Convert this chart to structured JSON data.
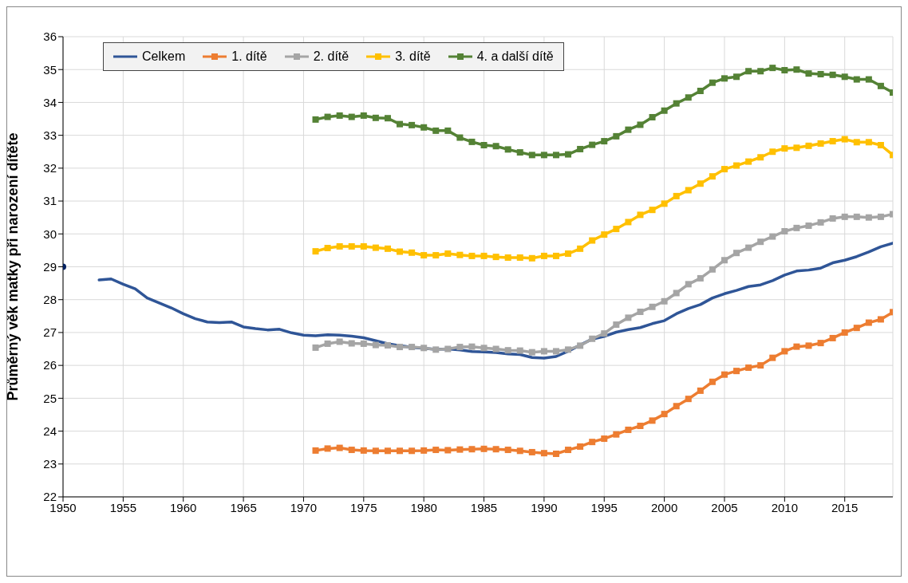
{
  "chart_data": {
    "type": "line",
    "ylabel": "Průměrný věk matky při narození dítěte",
    "xlim": [
      1950,
      2019
    ],
    "xticks": [
      1950,
      1955,
      1960,
      1965,
      1970,
      1975,
      1980,
      1985,
      1990,
      1995,
      2000,
      2005,
      2010,
      2015
    ],
    "ylim": [
      22,
      36
    ],
    "yticks": [
      22,
      23,
      24,
      25,
      26,
      27,
      28,
      29,
      30,
      31,
      32,
      33,
      34,
      35,
      36
    ],
    "grid": true,
    "legend": "top left",
    "series": [
      {
        "type": "scatter",
        "color": "#002060",
        "marker": "circle",
        "x": [
          1950
        ],
        "values": [
          29.0
        ]
      },
      {
        "name": "Celkem",
        "color": "#2f5597",
        "marker": "none",
        "x": [
          1953,
          1954,
          1955,
          1956,
          1957,
          1958,
          1959,
          1960,
          1961,
          1962,
          1963,
          1964,
          1965,
          1966,
          1967,
          1968,
          1969,
          1970,
          1971,
          1972,
          1973,
          1974,
          1975,
          1976,
          1977,
          1978,
          1979,
          1980,
          1981,
          1982,
          1983,
          1984,
          1985,
          1986,
          1987,
          1988,
          1989,
          1990,
          1991,
          1992,
          1993,
          1994,
          1995,
          1996,
          1997,
          1998,
          1999,
          2000,
          2001,
          2002,
          2003,
          2004,
          2005,
          2006,
          2007,
          2008,
          2009,
          2010,
          2011,
          2012,
          2013,
          2014,
          2015,
          2016,
          2017,
          2018,
          2019
        ],
        "values": [
          28.6,
          28.63,
          28.47,
          28.33,
          28.05,
          27.9,
          27.75,
          27.57,
          27.42,
          27.32,
          27.3,
          27.32,
          27.17,
          27.12,
          27.08,
          27.1,
          26.99,
          26.92,
          26.9,
          26.93,
          26.92,
          26.89,
          26.84,
          26.75,
          26.66,
          26.6,
          26.55,
          26.52,
          26.49,
          26.5,
          26.47,
          26.42,
          26.41,
          26.39,
          26.35,
          26.33,
          26.24,
          26.22,
          26.27,
          26.43,
          26.62,
          26.8,
          26.88,
          27.01,
          27.09,
          27.15,
          27.27,
          27.36,
          27.57,
          27.73,
          27.85,
          28.05,
          28.18,
          28.28,
          28.4,
          28.45,
          28.58,
          28.75,
          28.87,
          28.9,
          28.96,
          29.12,
          29.2,
          29.31,
          29.45,
          29.61,
          29.72
        ]
      },
      {
        "name": "1. dítě",
        "color": "#ed7d31",
        "marker": "square",
        "x": [
          1971,
          1972,
          1973,
          1974,
          1975,
          1976,
          1977,
          1978,
          1979,
          1980,
          1981,
          1982,
          1983,
          1984,
          1985,
          1986,
          1987,
          1988,
          1989,
          1990,
          1991,
          1992,
          1993,
          1994,
          1995,
          1996,
          1997,
          1998,
          1999,
          2000,
          2001,
          2002,
          2003,
          2004,
          2005,
          2006,
          2007,
          2008,
          2009,
          2010,
          2011,
          2012,
          2013,
          2014,
          2015,
          2016,
          2017,
          2018,
          2019
        ],
        "values": [
          23.41,
          23.47,
          23.49,
          23.43,
          23.41,
          23.4,
          23.4,
          23.4,
          23.4,
          23.41,
          23.43,
          23.42,
          23.44,
          23.45,
          23.46,
          23.45,
          23.43,
          23.4,
          23.36,
          23.33,
          23.31,
          23.43,
          23.53,
          23.67,
          23.77,
          23.9,
          24.04,
          24.16,
          24.32,
          24.52,
          24.76,
          24.98,
          25.23,
          25.5,
          25.72,
          25.83,
          25.93,
          26.0,
          26.23,
          26.43,
          26.57,
          26.6,
          26.68,
          26.83,
          27.0,
          27.14,
          27.3,
          27.4,
          27.62
        ]
      },
      {
        "name": "2. dítě",
        "color": "#a5a5a5",
        "marker": "square",
        "x": [
          1971,
          1972,
          1973,
          1974,
          1975,
          1976,
          1977,
          1978,
          1979,
          1980,
          1981,
          1982,
          1983,
          1984,
          1985,
          1986,
          1987,
          1988,
          1989,
          1990,
          1991,
          1992,
          1993,
          1994,
          1995,
          1996,
          1997,
          1998,
          1999,
          2000,
          2001,
          2002,
          2003,
          2004,
          2005,
          2006,
          2007,
          2008,
          2009,
          2010,
          2011,
          2012,
          2013,
          2014,
          2015,
          2016,
          2017,
          2018,
          2019
        ],
        "values": [
          26.54,
          26.66,
          26.72,
          26.67,
          26.66,
          26.62,
          26.61,
          26.56,
          26.56,
          26.53,
          26.48,
          26.5,
          26.56,
          26.57,
          26.53,
          26.5,
          26.46,
          26.45,
          26.4,
          26.43,
          26.43,
          26.48,
          26.6,
          26.81,
          26.97,
          27.24,
          27.45,
          27.63,
          27.78,
          27.95,
          28.2,
          28.47,
          28.65,
          28.92,
          29.2,
          29.42,
          29.58,
          29.76,
          29.92,
          30.08,
          30.18,
          30.25,
          30.35,
          30.47,
          30.52,
          30.52,
          30.5,
          30.52,
          30.6
        ]
      },
      {
        "name": "3. dítě",
        "color": "#ffc000",
        "marker": "square",
        "x": [
          1971,
          1972,
          1973,
          1974,
          1975,
          1976,
          1977,
          1978,
          1979,
          1980,
          1981,
          1982,
          1983,
          1984,
          1985,
          1986,
          1987,
          1988,
          1989,
          1990,
          1991,
          1992,
          1993,
          1994,
          1995,
          1996,
          1997,
          1998,
          1999,
          2000,
          2001,
          2002,
          2003,
          2004,
          2005,
          2006,
          2007,
          2008,
          2009,
          2010,
          2011,
          2012,
          2013,
          2014,
          2015,
          2016,
          2017,
          2018,
          2019
        ],
        "values": [
          29.47,
          29.57,
          29.62,
          29.62,
          29.62,
          29.58,
          29.55,
          29.46,
          29.43,
          29.35,
          29.35,
          29.4,
          29.36,
          29.33,
          29.33,
          29.3,
          29.28,
          29.28,
          29.26,
          29.33,
          29.33,
          29.4,
          29.55,
          29.8,
          29.98,
          30.15,
          30.36,
          30.58,
          30.73,
          30.92,
          31.15,
          31.33,
          31.53,
          31.75,
          31.97,
          32.08,
          32.2,
          32.33,
          32.5,
          32.6,
          32.62,
          32.68,
          32.75,
          32.82,
          32.88,
          32.79,
          32.79,
          32.7,
          32.4
        ]
      },
      {
        "name": "4. a další dítě",
        "color": "#548235",
        "marker": "square",
        "x": [
          1971,
          1972,
          1973,
          1974,
          1975,
          1976,
          1977,
          1978,
          1979,
          1980,
          1981,
          1982,
          1983,
          1984,
          1985,
          1986,
          1987,
          1988,
          1989,
          1990,
          1991,
          1992,
          1993,
          1994,
          1995,
          1996,
          1997,
          1998,
          1999,
          2000,
          2001,
          2002,
          2003,
          2004,
          2005,
          2006,
          2007,
          2008,
          2009,
          2010,
          2011,
          2012,
          2013,
          2014,
          2015,
          2016,
          2017,
          2018,
          2019
        ],
        "values": [
          33.48,
          33.56,
          33.6,
          33.56,
          33.6,
          33.53,
          33.52,
          33.34,
          33.31,
          33.24,
          33.14,
          33.14,
          32.93,
          32.8,
          32.7,
          32.67,
          32.57,
          32.48,
          32.4,
          32.4,
          32.4,
          32.42,
          32.58,
          32.71,
          32.82,
          32.97,
          33.17,
          33.32,
          33.55,
          33.75,
          33.97,
          34.15,
          34.35,
          34.6,
          34.73,
          34.78,
          34.95,
          34.95,
          35.05,
          34.98,
          35.0,
          34.88,
          34.86,
          34.84,
          34.78,
          34.7,
          34.7,
          34.5,
          34.3
        ]
      }
    ]
  }
}
